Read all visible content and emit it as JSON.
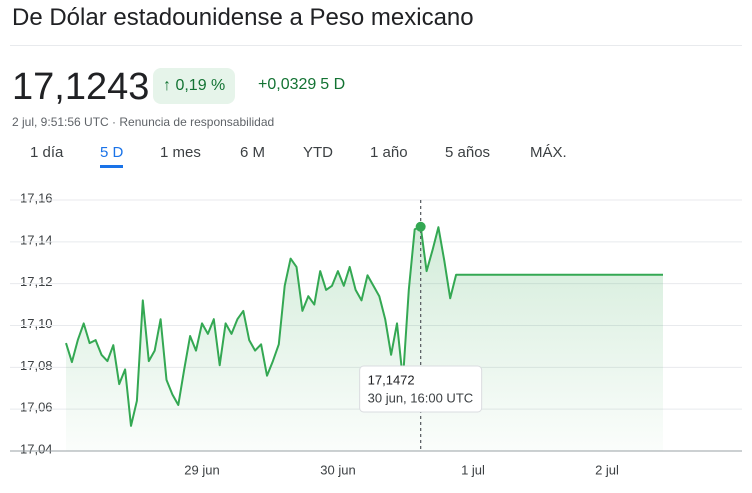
{
  "header": {
    "title": "De Dólar estadounidense a Peso mexicano",
    "price": "17,1243",
    "change_percent": "0,19 %",
    "change_value": "+0,0329",
    "change_period": "5 D",
    "timestamp": "2 jul, 9:51:56 UTC",
    "disclaimer": "Renuncia de responsabilidad"
  },
  "tabs": {
    "items": [
      "1 día",
      "5 D",
      "1 mes",
      "6 M",
      "YTD",
      "1 año",
      "5 años",
      "MÁX."
    ],
    "selected": 1
  },
  "chart_data": {
    "type": "line",
    "series": [
      {
        "color": "#34a853",
        "values": [
          17.0916,
          17.0825,
          17.093,
          17.101,
          17.0916,
          17.093,
          17.086,
          17.083,
          17.0906,
          17.072,
          17.079,
          17.052,
          17.064,
          17.112,
          17.083,
          17.088,
          17.103,
          17.074,
          17.067,
          17.062,
          17.079,
          17.095,
          17.088,
          17.101,
          17.096,
          17.103,
          17.081,
          17.101,
          17.096,
          17.103,
          17.107,
          17.093,
          17.088,
          17.091,
          17.076,
          17.083,
          17.091,
          17.119,
          17.132,
          17.128,
          17.107,
          17.114,
          17.11,
          17.126,
          17.117,
          17.119,
          17.126,
          17.119,
          17.128,
          17.117,
          17.112,
          17.124,
          17.119,
          17.114,
          17.103,
          17.086,
          17.101,
          17.074,
          17.117,
          17.146,
          17.1472,
          17.126,
          17.136,
          17.147,
          17.131,
          17.113,
          17.1243,
          17.1243,
          17.1243,
          17.1243,
          17.1243,
          17.1243,
          17.1243,
          17.1243,
          17.1243,
          17.1243,
          17.1243,
          17.1243,
          17.1243,
          17.1243,
          17.1243,
          17.1243,
          17.1243,
          17.1243,
          17.1243,
          17.1243,
          17.1243,
          17.1243,
          17.1243,
          17.1243,
          17.1243,
          17.1243,
          17.1243,
          17.1243,
          17.1243,
          17.1243,
          17.1243,
          17.1243,
          17.1243,
          17.1243,
          17.1243,
          17.1243
        ]
      }
    ],
    "x_labels": [
      "29 jun",
      "30 jun",
      "1 jul",
      "2 jul"
    ],
    "ylim": [
      17.04,
      17.16
    ],
    "yticks": [
      {
        "value": 17.04,
        "label": "17,04"
      },
      {
        "value": 17.06,
        "label": "17,06"
      },
      {
        "value": 17.08,
        "label": "17,08"
      },
      {
        "value": 17.1,
        "label": "17,10"
      },
      {
        "value": 17.12,
        "label": "17,12"
      },
      {
        "value": 17.14,
        "label": "17,14"
      },
      {
        "value": 17.16,
        "label": "17,16"
      }
    ],
    "grid": true,
    "tooltip": {
      "value": 17.1472,
      "label": "17,1472",
      "time": "30 jun, 16:00 UTC"
    }
  }
}
